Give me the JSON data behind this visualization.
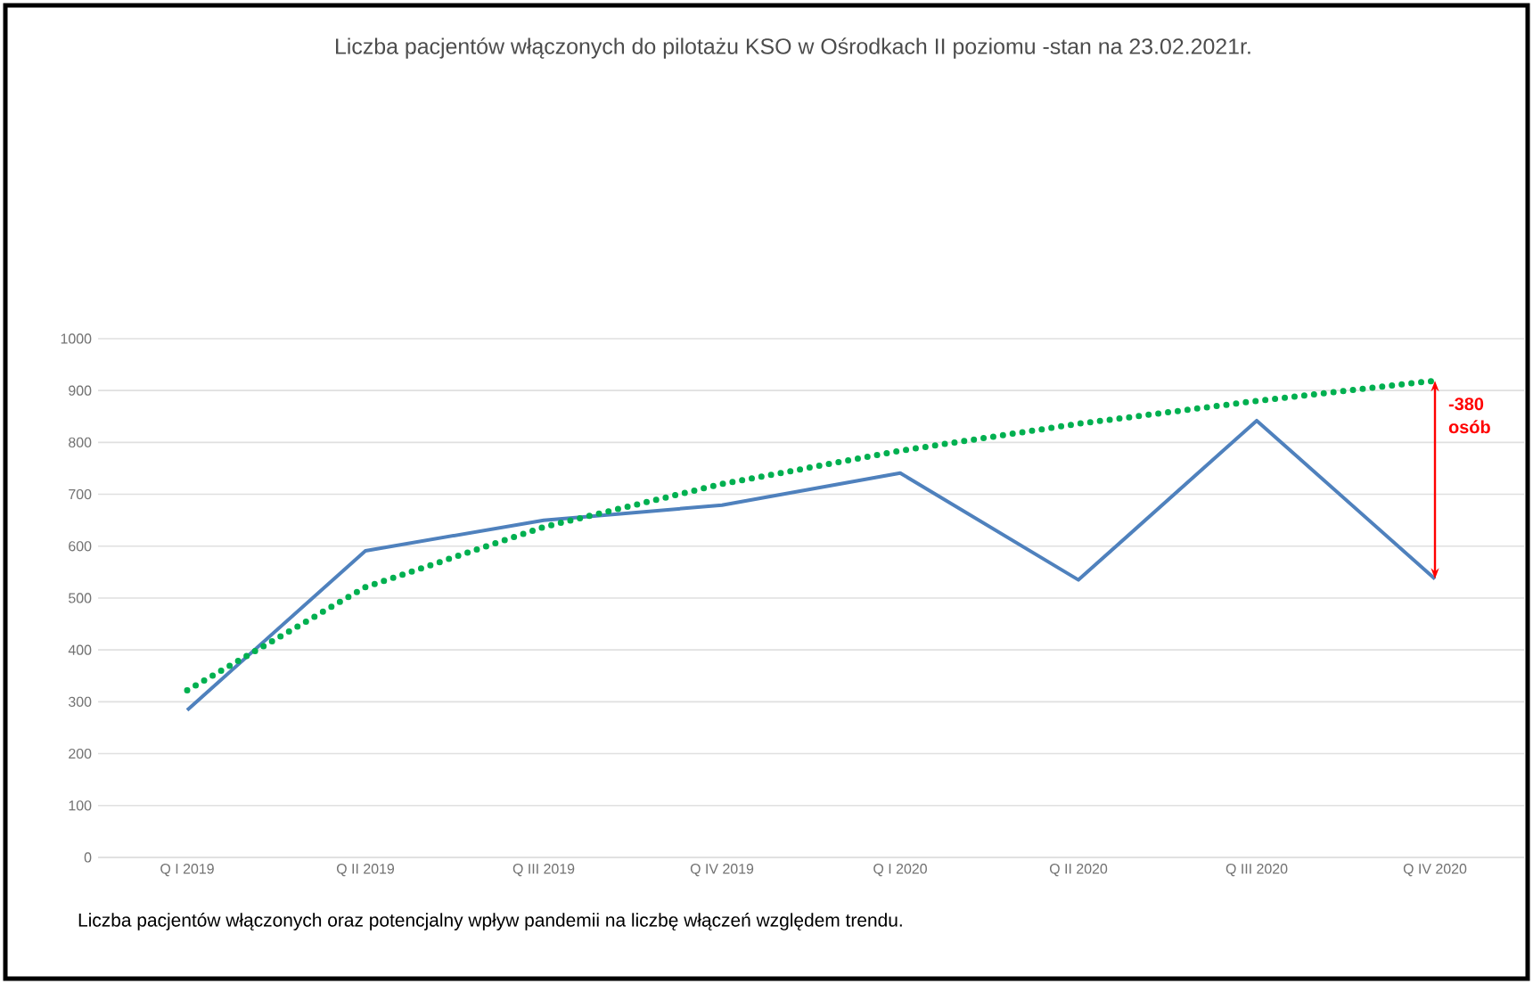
{
  "chart_data": {
    "type": "line",
    "title": "Liczba  pacjentów włączonych do pilotażu KSO w Ośrodkach II poziomu -stan na 23.02.2021r.",
    "categories": [
      "Q I 2019",
      "Q II 2019",
      "Q III 2019",
      "Q IV 2019",
      "Q I 2020",
      "Q II 2020",
      "Q III 2020",
      "Q IV 2020"
    ],
    "series": [
      {
        "color": "#4f81bd",
        "values": [
          284,
          591,
          650,
          679,
          741,
          535,
          842,
          537
        ],
        "line_style": "solid"
      },
      {
        "color": "#00b050",
        "values": [
          322,
          521,
          637,
          720,
          784,
          836,
          880,
          919
        ],
        "line_style": "dotted"
      }
    ],
    "ylim": [
      0,
      1000
    ],
    "yticks": [
      0,
      100,
      200,
      300,
      400,
      500,
      600,
      700,
      800,
      900,
      1000
    ],
    "grid": "y",
    "legend": false,
    "marker": "none",
    "annotations": [
      {
        "text": "-380 osób",
        "x": "Q IV 2020",
        "y": 537
      },
      "Liczba pacjentów włączonych oraz potencjalny wpływ pandemii na liczbę włączeń względem trendu."
    ]
  }
}
